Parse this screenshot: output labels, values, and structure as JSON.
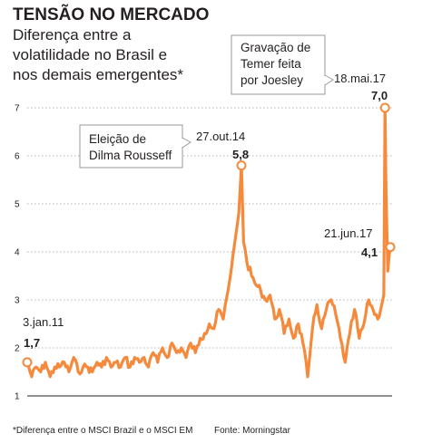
{
  "chart_data": {
    "type": "line",
    "title": "TENSÃO NO MERCADO",
    "subtitle_lines": [
      "Diferença entre a",
      "volatilidade no Brasil e",
      "nos demais emergentes*"
    ],
    "ylim": [
      1,
      7
    ],
    "y_ticks": [
      "1",
      "2",
      "3",
      "4",
      "5",
      "6",
      "7"
    ],
    "x_range": [
      "2011-01-03",
      "2017-06-21"
    ],
    "grid": "horizontal-dotted",
    "series_color": "#f58a3c",
    "series": [
      {
        "x": [
          "2011-01-03",
          "2011-02-01",
          "2011-03-01",
          "2011-04-01",
          "2011-05-01",
          "2011-06-01",
          "2011-07-01",
          "2011-08-01",
          "2011-09-01",
          "2011-10-01",
          "2011-11-01",
          "2011-12-01",
          "2012-01-01",
          "2012-02-01",
          "2012-03-01",
          "2012-04-01",
          "2012-05-01",
          "2012-06-01",
          "2012-07-01",
          "2012-08-01",
          "2012-09-01",
          "2012-10-01",
          "2012-11-01",
          "2012-12-01",
          "2013-01-01",
          "2013-02-01",
          "2013-03-01",
          "2013-04-01",
          "2013-05-01",
          "2013-06-01",
          "2013-07-01",
          "2013-08-01",
          "2013-09-01",
          "2013-10-01",
          "2013-11-01",
          "2013-12-01",
          "2014-01-01",
          "2014-02-01",
          "2014-03-01",
          "2014-04-01",
          "2014-05-01",
          "2014-06-01",
          "2014-07-01",
          "2014-08-01",
          "2014-09-01",
          "2014-10-10",
          "2014-10-27",
          "2014-11-10",
          "2014-12-01",
          "2015-01-01",
          "2015-02-01",
          "2015-03-01",
          "2015-04-01",
          "2015-05-01",
          "2015-06-01",
          "2015-07-01",
          "2015-08-01",
          "2015-09-01",
          "2015-10-01",
          "2015-11-01",
          "2015-12-01",
          "2016-01-01",
          "2016-02-01",
          "2016-03-01",
          "2016-04-01",
          "2016-05-01",
          "2016-06-01",
          "2016-07-01",
          "2016-08-01",
          "2016-09-01",
          "2016-10-01",
          "2016-11-01",
          "2016-12-01",
          "2017-01-01",
          "2017-02-01",
          "2017-03-01",
          "2017-04-01",
          "2017-05-10",
          "2017-05-18",
          "2017-05-25",
          "2017-06-05",
          "2017-06-21"
        ],
        "y": [
          1.7,
          1.4,
          1.6,
          1.5,
          1.7,
          1.4,
          1.6,
          1.6,
          1.7,
          1.5,
          1.8,
          1.5,
          1.6,
          1.6,
          1.5,
          1.7,
          1.6,
          1.8,
          1.6,
          1.7,
          1.6,
          1.8,
          1.6,
          1.8,
          1.7,
          1.8,
          1.6,
          1.9,
          1.7,
          2.0,
          1.8,
          2.1,
          1.9,
          2.0,
          1.8,
          2.1,
          1.9,
          2.2,
          2.3,
          2.5,
          2.4,
          2.8,
          2.6,
          3.2,
          3.9,
          4.8,
          5.8,
          4.2,
          3.8,
          3.5,
          3.3,
          3.2,
          3.0,
          3.1,
          2.6,
          2.8,
          2.3,
          2.6,
          2.2,
          2.5,
          2.1,
          1.4,
          2.4,
          2.9,
          2.4,
          2.8,
          3.0,
          2.7,
          2.2,
          1.7,
          2.3,
          2.8,
          2.2,
          2.5,
          3.0,
          2.8,
          2.6,
          3.1,
          7.0,
          5.2,
          3.6,
          4.1
        ]
      }
    ],
    "annotations": [
      {
        "date": "3.jan.11",
        "value": "1,7"
      },
      {
        "date": "27.out.14",
        "value": "5,8",
        "callout": [
          "Eleição de",
          "Dilma Rousseff"
        ]
      },
      {
        "date": "18.mai.17",
        "value": "7,0",
        "callout": [
          "Gravação de",
          "Temer feita",
          "por Joesley"
        ]
      },
      {
        "date": "21.jun.17",
        "value": "4,1"
      }
    ],
    "footnote": "*Diferença entre o MSCI Brazil e o MSCI EM",
    "source": "Fonte: Morningstar"
  }
}
